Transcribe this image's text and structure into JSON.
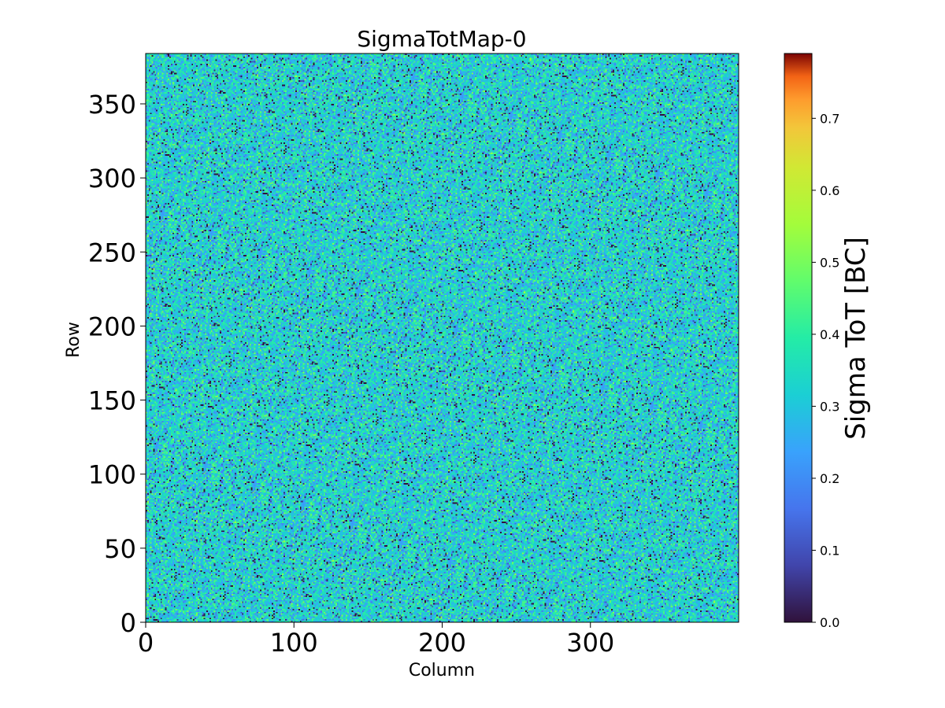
{
  "chart_data": {
    "type": "heatmap",
    "title": "SigmaTotMap-0",
    "xlabel": "Column",
    "ylabel": "Row",
    "colorbar_label": "Sigma ToT [BC]",
    "colormap": "turbo",
    "xlim": [
      0,
      400
    ],
    "ylim": [
      0,
      384
    ],
    "grid_size": {
      "columns": 400,
      "rows": 384
    },
    "x_ticks": [
      0,
      100,
      200,
      300
    ],
    "x_tick_labels": [
      "0",
      "100",
      "200",
      "300"
    ],
    "y_ticks": [
      0,
      50,
      100,
      150,
      200,
      250,
      300,
      350
    ],
    "y_tick_labels": [
      "0",
      "50",
      "100",
      "150",
      "200",
      "250",
      "300",
      "350"
    ],
    "color_range": [
      0.0,
      0.79
    ],
    "colorbar_ticks": [
      0.0,
      0.1,
      0.2,
      0.3,
      0.4,
      0.5,
      0.6,
      0.7
    ],
    "colorbar_tick_labels": [
      "0.0",
      "0.1",
      "0.2",
      "0.3",
      "0.4",
      "0.5",
      "0.6",
      "0.7"
    ],
    "value_summary": {
      "typical_range": [
        0.25,
        0.45
      ],
      "mean_approx": 0.33
    },
    "grid": false
  }
}
